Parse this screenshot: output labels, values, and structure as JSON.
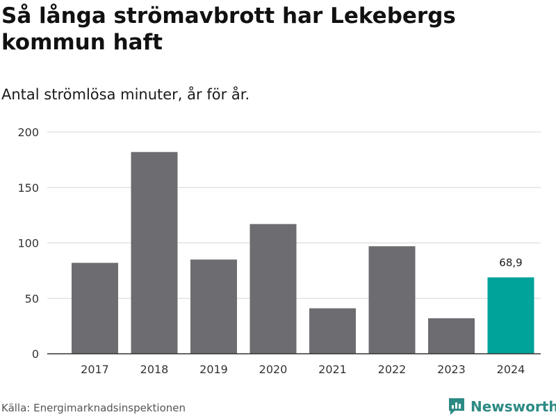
{
  "header": {
    "title": "Så långa strömavbrott har Lekebergs kommun haft",
    "subtitle": "Antal strömlösa minuter, år för år."
  },
  "footer": {
    "source": "Källa: Energimarknadsinspektionen",
    "brand": "Newsworthy"
  },
  "colors": {
    "bar": "#6d6c71",
    "highlight": "#00a39a",
    "grid": "#dddddd",
    "axis": "#333333",
    "brand": "#2c8a84"
  },
  "chart_data": {
    "type": "bar",
    "title": "Så långa strömavbrott har Lekebergs kommun haft",
    "subtitle": "Antal strömlösa minuter, år för år.",
    "categories": [
      "2017",
      "2018",
      "2019",
      "2020",
      "2021",
      "2022",
      "2023",
      "2024"
    ],
    "values": [
      82,
      182,
      85,
      117,
      41,
      97,
      32,
      68.9
    ],
    "highlight_index": 7,
    "data_labels": [
      {
        "index": 7,
        "text": "68,9"
      }
    ],
    "yticks": [
      0,
      50,
      100,
      150,
      200
    ],
    "ylim": [
      0,
      200
    ],
    "xlabel": "",
    "ylabel": "",
    "grid": true
  }
}
